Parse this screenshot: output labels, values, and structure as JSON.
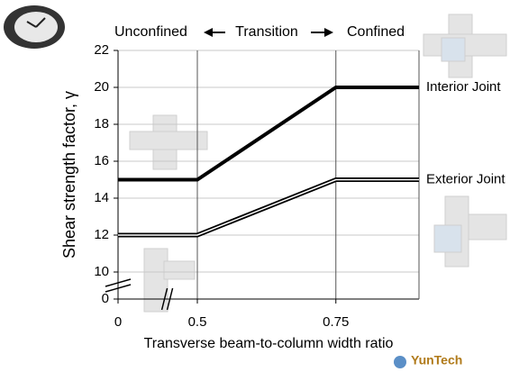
{
  "chart_data": {
    "type": "line",
    "header_left": "Unconfined",
    "header_middle": "Transition",
    "header_right": "Confined",
    "xlabel": "Transverse beam-to-column width ratio",
    "ylabel": "Shear strength factor, γ",
    "x": [
      0,
      0.5,
      0.75,
      0.9
    ],
    "series": [
      {
        "name": "Interior Joint",
        "color": "#000000",
        "values": [
          15,
          15,
          20,
          20
        ]
      },
      {
        "name": "Exterior Joint",
        "color": "#000000",
        "values": [
          12,
          12,
          15,
          15
        ]
      }
    ],
    "xlim": [
      0,
      0.9
    ],
    "xticks": [
      0,
      0.5,
      0.75
    ],
    "x_break": [
      0,
      0.5
    ],
    "ylim": [
      0,
      22
    ],
    "yticks": [
      0,
      10,
      12,
      14,
      16,
      18,
      20,
      22
    ],
    "y_break": [
      0,
      10
    ],
    "grid": true,
    "footer_logo": "YunTech"
  }
}
